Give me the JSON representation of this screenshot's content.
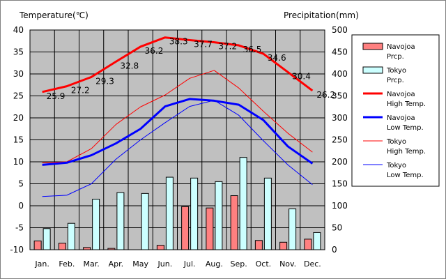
{
  "chart_data": {
    "type": "bar+line",
    "categories": [
      "Jan.",
      "Feb.",
      "Mar.",
      "Apr.",
      "May",
      "Jun.",
      "Jul.",
      "Aug.",
      "Sep.",
      "Oct.",
      "Nov.",
      "Dec."
    ],
    "y_left": {
      "label": "Temperature(℃)",
      "min": -10,
      "max": 40,
      "ticks": [
        -10,
        -5,
        0,
        5,
        10,
        15,
        20,
        25,
        30,
        35,
        40
      ]
    },
    "y_right": {
      "label": "Precipitation(mm)",
      "min": 0,
      "max": 500,
      "ticks": [
        0,
        50,
        100,
        150,
        200,
        250,
        300,
        350,
        400,
        450,
        500
      ]
    },
    "grid": true,
    "legend_position": "right",
    "bar_series": [
      {
        "name": "Navojoa\nPrcp.",
        "color": "#ff8080",
        "values": [
          20,
          15,
          5,
          3,
          0,
          10,
          98,
          95,
          123,
          21,
          17,
          24
        ]
      },
      {
        "name": "Tokyo\nPrcp.",
        "color": "#ccffff",
        "values": [
          48,
          60,
          115,
          130,
          128,
          165,
          163,
          155,
          210,
          163,
          93,
          39
        ]
      }
    ],
    "line_series": [
      {
        "name": "Navojoa\nHigh Temp.",
        "color": "#ff0000",
        "width": 3,
        "values": [
          25.9,
          27.2,
          29.3,
          32.8,
          36.2,
          38.3,
          37.7,
          37.2,
          36.5,
          34.6,
          30.4,
          26.2
        ],
        "labels": [
          "25.9",
          "27.2",
          "29.3",
          "32.8",
          "36.2",
          "38.3",
          "37.7",
          "37.2",
          "36.5",
          "34.6",
          "30.4",
          "26.2"
        ]
      },
      {
        "name": "Navojoa\nLow Temp.",
        "color": "#0000ff",
        "width": 3,
        "values": [
          9.3,
          9.8,
          11.5,
          14.2,
          17.5,
          22.6,
          24.3,
          23.9,
          23.0,
          19.5,
          13.5,
          9.6
        ]
      },
      {
        "name": "Tokyo\nHigh Temp.",
        "color": "#ff0000",
        "width": 1,
        "values": [
          9.8,
          10.0,
          13.0,
          18.5,
          22.5,
          25.2,
          29.0,
          30.8,
          26.8,
          21.5,
          16.5,
          12.2
        ]
      },
      {
        "name": "Tokyo\nLow Temp.",
        "color": "#0000ff",
        "width": 1,
        "values": [
          2.1,
          2.4,
          5.0,
          10.6,
          15.0,
          18.9,
          22.6,
          24.0,
          20.6,
          14.8,
          9.3,
          4.8
        ]
      }
    ]
  }
}
